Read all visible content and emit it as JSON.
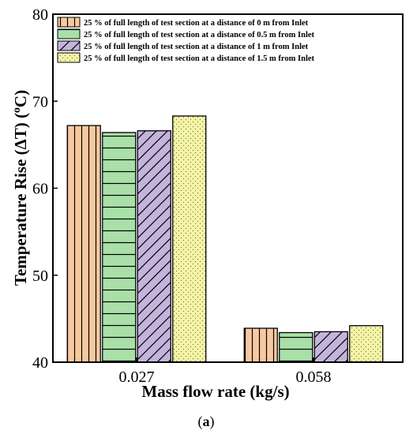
{
  "chart_data": {
    "type": "bar",
    "categories": [
      "0.027",
      "0.058"
    ],
    "series": [
      {
        "name": "25 % of full length of test section at a distance of 0 m from Inlet",
        "values": [
          67.2,
          43.9
        ],
        "color": "#f8c9a0",
        "pattern": "vertical-lines"
      },
      {
        "name": "25 % of full length of test section at a distance of 0.5 m from Inlet",
        "values": [
          66.4,
          43.4
        ],
        "color": "#a8e0a8",
        "pattern": "horizontal-lines"
      },
      {
        "name": "25 % of full length of test section at a distance of 1 m from Inlet",
        "values": [
          66.6,
          43.5
        ],
        "color": "#c4b4dc",
        "pattern": "diagonal-lines"
      },
      {
        "name": "25 % of full length of test section at a distance of 1.5 m from Inlet",
        "values": [
          68.3,
          44.2
        ],
        "color": "#f4f4a4",
        "pattern": "dots"
      }
    ],
    "xlabel": "Mass flow rate (kg/s)",
    "ylabel": "Temperature Rise (ΔT) (",
    "ylabel_unit_sup": "o",
    "ylabel_unit": "C)",
    "ylim": [
      40,
      80
    ],
    "yticks": [
      "40",
      "50",
      "60",
      "70",
      "80"
    ],
    "grid": false,
    "legend_position": "top-left"
  },
  "caption": {
    "open": "(",
    "letter": "a",
    "close": ")"
  }
}
